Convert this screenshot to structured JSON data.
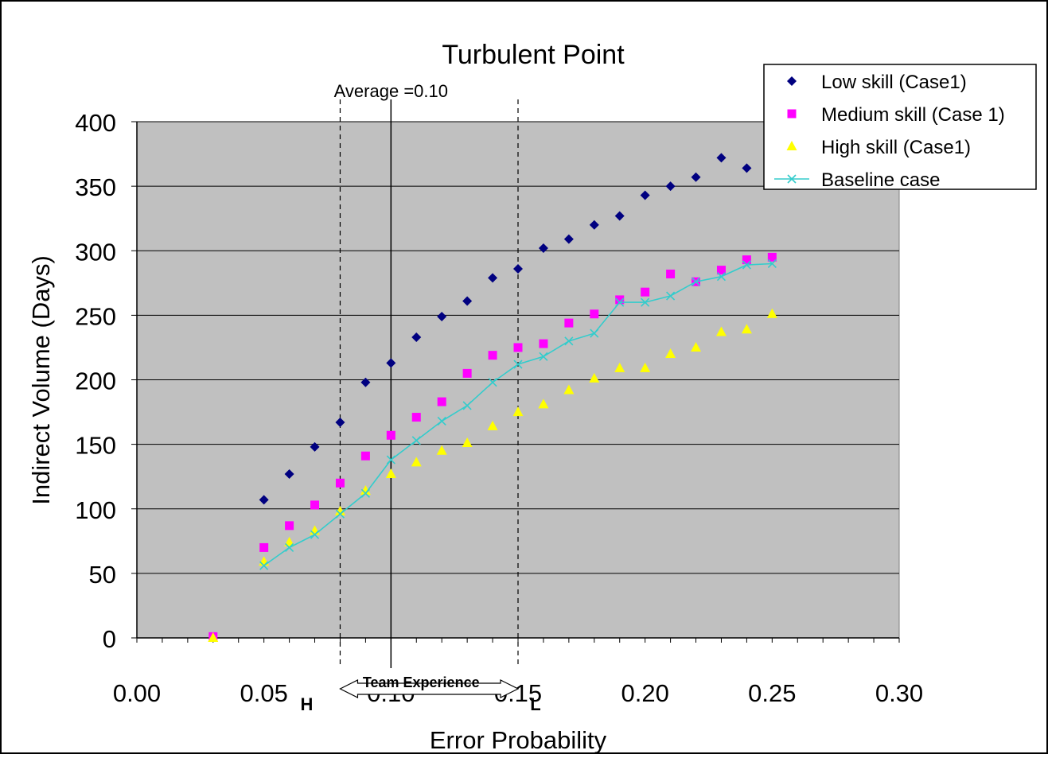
{
  "chart_data": {
    "type": "scatter",
    "title": "Turbulent Point",
    "xlabel": "Error Probability",
    "ylabel": "Indirect Volume (Days)",
    "xlim": [
      0,
      0.3
    ],
    "ylim": [
      0,
      400
    ],
    "x_ticks": [
      "0.00",
      "0.05",
      "0.10",
      "0.15",
      "0.20",
      "0.25",
      "0.30"
    ],
    "y_ticks": [
      "0",
      "50",
      "100",
      "150",
      "200",
      "250",
      "300",
      "350",
      "400"
    ],
    "grid": "horizontal",
    "plot_background": "#c0c0c0",
    "legend_position": "top-right",
    "series": [
      {
        "name": "Low skill (Case1)",
        "marker": "diamond",
        "color": "#000080",
        "line": false,
        "points": [
          [
            0.05,
            107
          ],
          [
            0.06,
            127
          ],
          [
            0.07,
            148
          ],
          [
            0.08,
            167
          ],
          [
            0.09,
            198
          ],
          [
            0.1,
            213
          ],
          [
            0.11,
            233
          ],
          [
            0.12,
            249
          ],
          [
            0.13,
            261
          ],
          [
            0.14,
            279
          ],
          [
            0.15,
            286
          ],
          [
            0.16,
            302
          ],
          [
            0.17,
            309
          ],
          [
            0.18,
            320
          ],
          [
            0.19,
            327
          ],
          [
            0.2,
            343
          ],
          [
            0.21,
            350
          ],
          [
            0.22,
            357
          ],
          [
            0.23,
            372
          ],
          [
            0.24,
            364
          ]
        ]
      },
      {
        "name": "Medium skill (Case 1)",
        "marker": "square",
        "color": "#ff00ff",
        "line": false,
        "points": [
          [
            0.03,
            1
          ],
          [
            0.05,
            70
          ],
          [
            0.06,
            87
          ],
          [
            0.07,
            103
          ],
          [
            0.08,
            120
          ],
          [
            0.09,
            141
          ],
          [
            0.1,
            157
          ],
          [
            0.11,
            171
          ],
          [
            0.12,
            183
          ],
          [
            0.13,
            205
          ],
          [
            0.14,
            219
          ],
          [
            0.15,
            225
          ],
          [
            0.16,
            228
          ],
          [
            0.17,
            244
          ],
          [
            0.18,
            251
          ],
          [
            0.19,
            262
          ],
          [
            0.2,
            268
          ],
          [
            0.21,
            282
          ],
          [
            0.22,
            276
          ],
          [
            0.23,
            285
          ],
          [
            0.24,
            293
          ],
          [
            0.25,
            295
          ]
        ]
      },
      {
        "name": "High skill (Case1)",
        "marker": "triangle",
        "color": "#ffff00",
        "line": false,
        "points": [
          [
            0.03,
            0
          ],
          [
            0.05,
            59
          ],
          [
            0.06,
            74
          ],
          [
            0.07,
            83
          ],
          [
            0.08,
            98
          ],
          [
            0.09,
            114
          ],
          [
            0.1,
            127
          ],
          [
            0.11,
            136
          ],
          [
            0.12,
            145
          ],
          [
            0.13,
            151
          ],
          [
            0.14,
            164
          ],
          [
            0.15,
            175
          ],
          [
            0.16,
            181
          ],
          [
            0.17,
            192
          ],
          [
            0.18,
            201
          ],
          [
            0.19,
            209
          ],
          [
            0.2,
            209
          ],
          [
            0.21,
            220
          ],
          [
            0.22,
            225
          ],
          [
            0.23,
            237
          ],
          [
            0.24,
            239
          ],
          [
            0.25,
            251
          ]
        ]
      },
      {
        "name": "Baseline case",
        "marker": "x",
        "color": "#33cccc",
        "line": true,
        "points": [
          [
            0.05,
            56
          ],
          [
            0.06,
            70
          ],
          [
            0.07,
            80
          ],
          [
            0.08,
            96
          ],
          [
            0.09,
            112
          ],
          [
            0.1,
            138
          ],
          [
            0.11,
            153
          ],
          [
            0.12,
            168
          ],
          [
            0.13,
            180
          ],
          [
            0.14,
            198
          ],
          [
            0.15,
            212
          ],
          [
            0.16,
            218
          ],
          [
            0.17,
            230
          ],
          [
            0.18,
            236
          ],
          [
            0.19,
            260
          ],
          [
            0.2,
            260
          ],
          [
            0.21,
            265
          ],
          [
            0.22,
            276
          ],
          [
            0.23,
            280
          ],
          [
            0.24,
            289
          ],
          [
            0.25,
            290
          ]
        ]
      }
    ],
    "reference_lines": [
      {
        "x": 0.08,
        "style": "dashed",
        "label": "H"
      },
      {
        "x": 0.1,
        "style": "solid",
        "label": "Average =0.10"
      },
      {
        "x": 0.15,
        "style": "dashed",
        "label": "L"
      }
    ],
    "annotations": {
      "arrow_label": "Team Experience",
      "arrow_from": 0.08,
      "arrow_to": 0.15
    }
  }
}
